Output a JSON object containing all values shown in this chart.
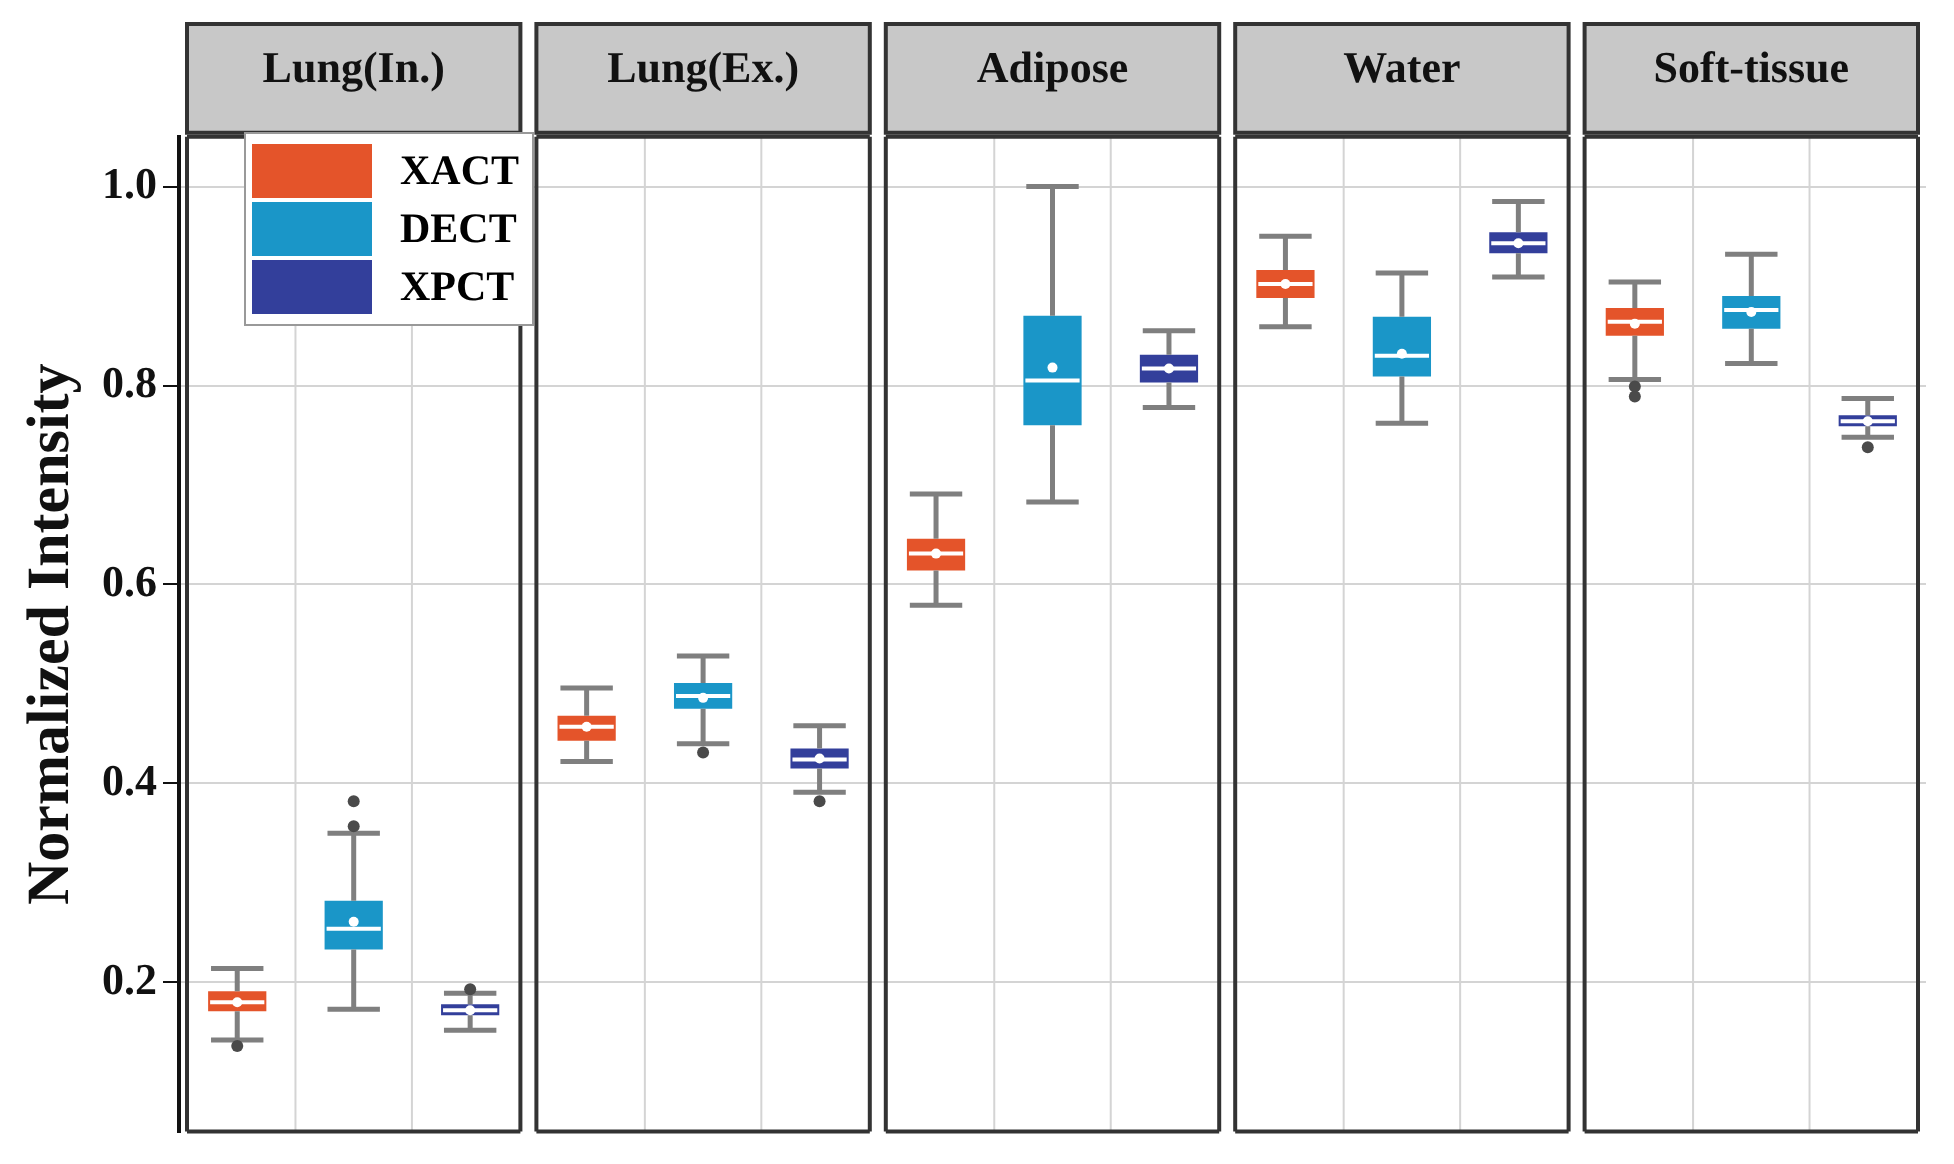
{
  "chart_data": {
    "type": "box",
    "ylabel": "Normalized Intensity",
    "categories": [
      "Lung(In.)",
      "Lung(Ex.)",
      "Adipose",
      "Water",
      "Soft-tissue"
    ],
    "series": [
      {
        "name": "XACT",
        "color": "#e4542a",
        "boxes": [
          {
            "low": 0.142,
            "q1": 0.171,
            "median": 0.18,
            "q3": 0.191,
            "high": 0.214,
            "mean": 0.18,
            "outliers": [
              0.136
            ]
          },
          {
            "low": 0.422,
            "q1": 0.443,
            "median": 0.457,
            "q3": 0.468,
            "high": 0.496,
            "mean": 0.457
          },
          {
            "low": 0.579,
            "q1": 0.614,
            "median": 0.631,
            "q3": 0.646,
            "high": 0.691,
            "mean": 0.631
          },
          {
            "low": 0.859,
            "q1": 0.888,
            "median": 0.902,
            "q3": 0.916,
            "high": 0.95,
            "mean": 0.902
          },
          {
            "low": 0.806,
            "q1": 0.85,
            "median": 0.864,
            "q3": 0.878,
            "high": 0.904,
            "mean": 0.862,
            "outliers": [
              0.799,
              0.789
            ]
          }
        ]
      },
      {
        "name": "DECT",
        "color": "#1a96c8",
        "boxes": [
          {
            "low": 0.173,
            "q1": 0.233,
            "median": 0.254,
            "q3": 0.282,
            "high": 0.35,
            "mean": 0.261,
            "outliers": [
              0.357,
              0.382
            ]
          },
          {
            "low": 0.44,
            "q1": 0.475,
            "median": 0.488,
            "q3": 0.501,
            "high": 0.528,
            "mean": 0.486,
            "outliers": [
              0.431
            ]
          },
          {
            "low": 0.683,
            "q1": 0.76,
            "median": 0.805,
            "q3": 0.87,
            "high": 1.0,
            "mean": 0.818
          },
          {
            "low": 0.762,
            "q1": 0.809,
            "median": 0.83,
            "q3": 0.869,
            "high": 0.913,
            "mean": 0.832
          },
          {
            "low": 0.822,
            "q1": 0.857,
            "median": 0.876,
            "q3": 0.89,
            "high": 0.932,
            "mean": 0.874
          }
        ]
      },
      {
        "name": "XPCT",
        "color": "#333f9b",
        "boxes": [
          {
            "low": 0.152,
            "q1": 0.167,
            "median": 0.172,
            "q3": 0.178,
            "high": 0.189,
            "mean": 0.172,
            "outliers": [
              0.193
            ]
          },
          {
            "low": 0.391,
            "q1": 0.415,
            "median": 0.424,
            "q3": 0.435,
            "high": 0.458,
            "mean": 0.425,
            "outliers": [
              0.382
            ]
          },
          {
            "low": 0.778,
            "q1": 0.803,
            "median": 0.817,
            "q3": 0.831,
            "high": 0.855,
            "mean": 0.817
          },
          {
            "low": 0.909,
            "q1": 0.933,
            "median": 0.943,
            "q3": 0.954,
            "high": 0.985,
            "mean": 0.943
          },
          {
            "low": 0.748,
            "q1": 0.759,
            "median": 0.764,
            "q3": 0.77,
            "high": 0.787,
            "mean": 0.764,
            "outliers": [
              0.738
            ]
          }
        ]
      }
    ],
    "ylim": [
      0.05,
      1.05
    ],
    "yticks": [
      0.2,
      0.4,
      0.6,
      0.8,
      {
        "value": 1.0,
        "label": "1.0"
      }
    ],
    "grid": true,
    "legend": "top left"
  }
}
